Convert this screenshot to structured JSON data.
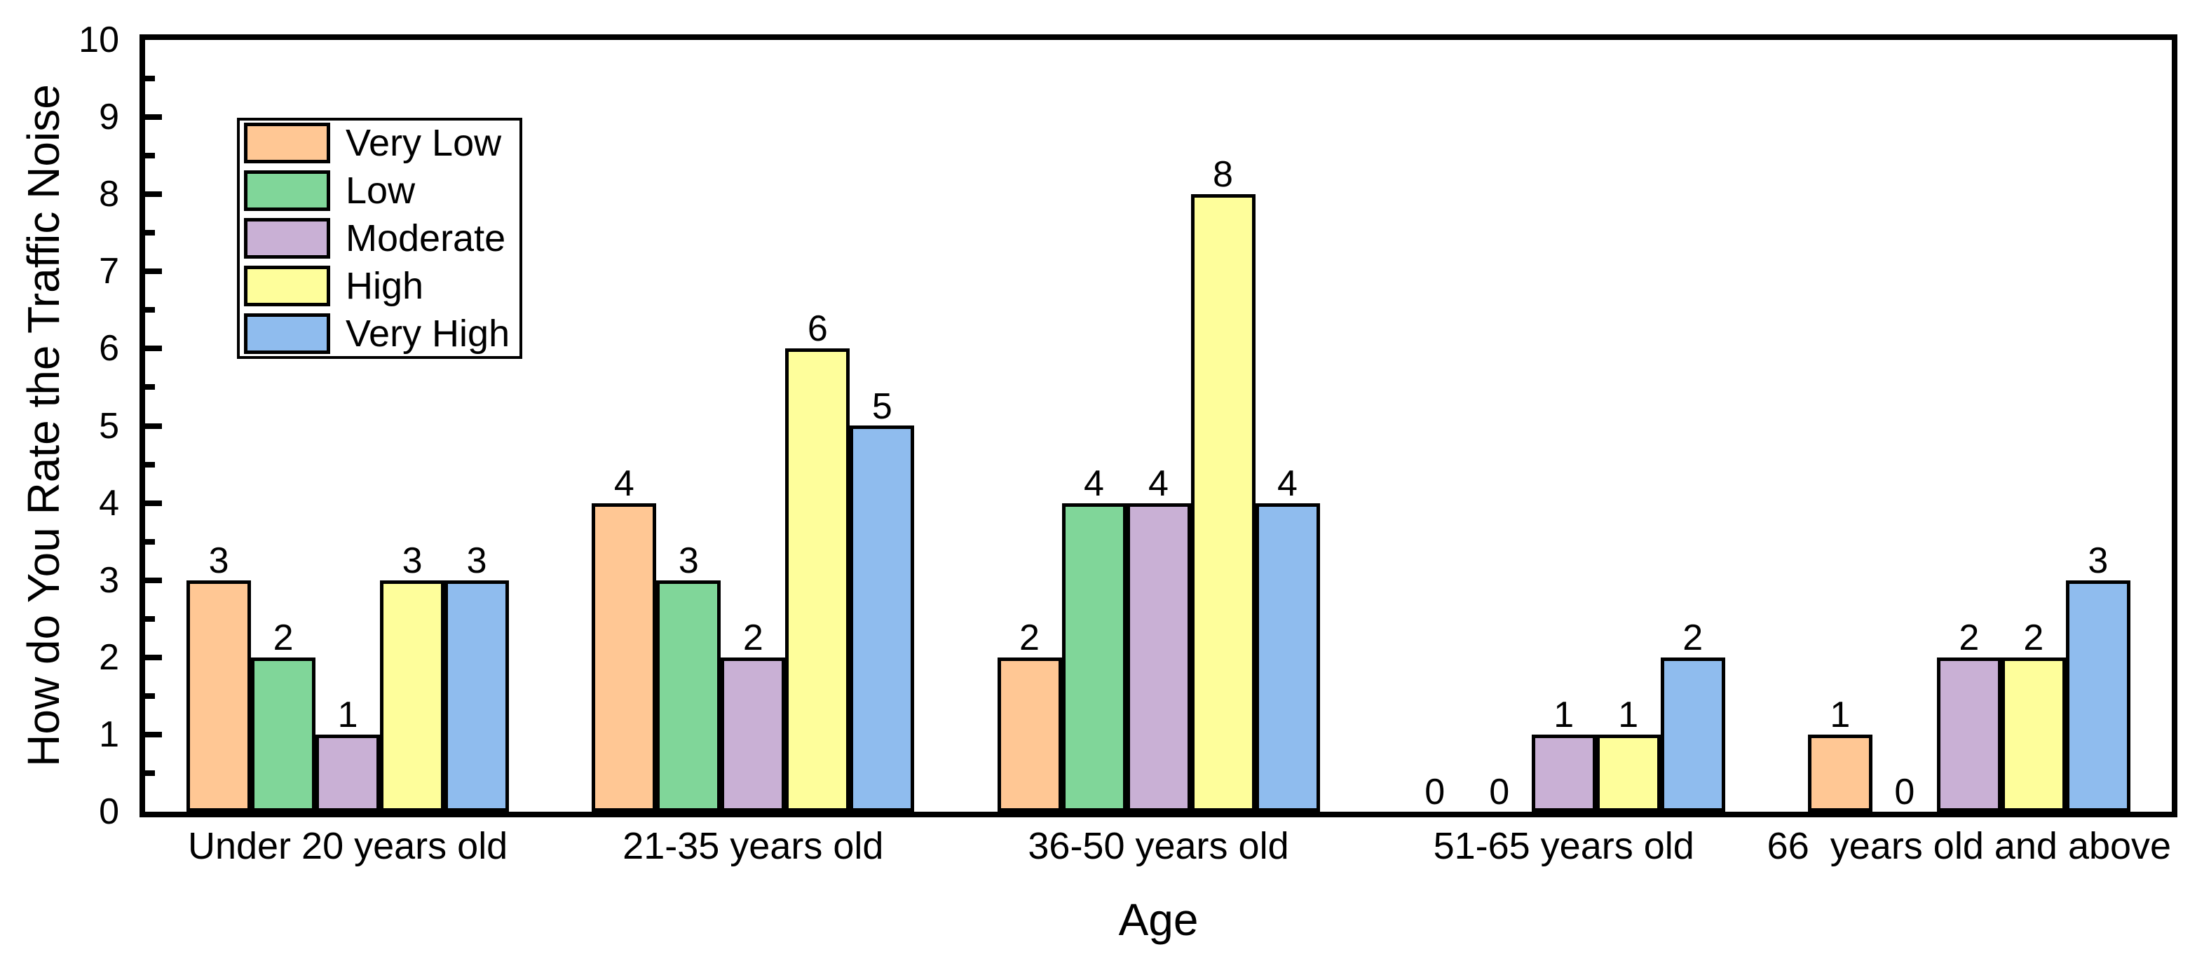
{
  "chart_data": {
    "type": "bar",
    "title": "",
    "xlabel": "Age",
    "ylabel": "How do You Rate the Traffic Noise",
    "ylim": [
      0,
      10
    ],
    "y_ticks": [
      0,
      1,
      2,
      3,
      4,
      5,
      6,
      7,
      8,
      9,
      10
    ],
    "y_major_tick_step": 1,
    "y_minor_tick_step": 0.5,
    "grid": false,
    "frame": true,
    "bar_value_labels": true,
    "legend_position": "upper-left-inside",
    "categories": [
      "Under 20 years old",
      "21-35 years old",
      "36-50 years old",
      "51-65 years old",
      "66  years old and above"
    ],
    "series": [
      {
        "name": "Very Low",
        "color": "#FFC794",
        "values": [
          3,
          4,
          2,
          0,
          1
        ]
      },
      {
        "name": "Low",
        "color": "#80D699",
        "values": [
          2,
          3,
          4,
          0,
          0
        ]
      },
      {
        "name": "Moderate",
        "color": "#C9B0D5",
        "values": [
          1,
          2,
          4,
          1,
          2
        ]
      },
      {
        "name": "High",
        "color": "#FEFE9B",
        "values": [
          3,
          6,
          8,
          1,
          2
        ]
      },
      {
        "name": "Very High",
        "color": "#8FBCEE",
        "values": [
          3,
          5,
          4,
          2,
          3
        ]
      }
    ]
  },
  "colors": {
    "axis": "#000000",
    "background": "#FFFFFF",
    "text": "#000000"
  }
}
